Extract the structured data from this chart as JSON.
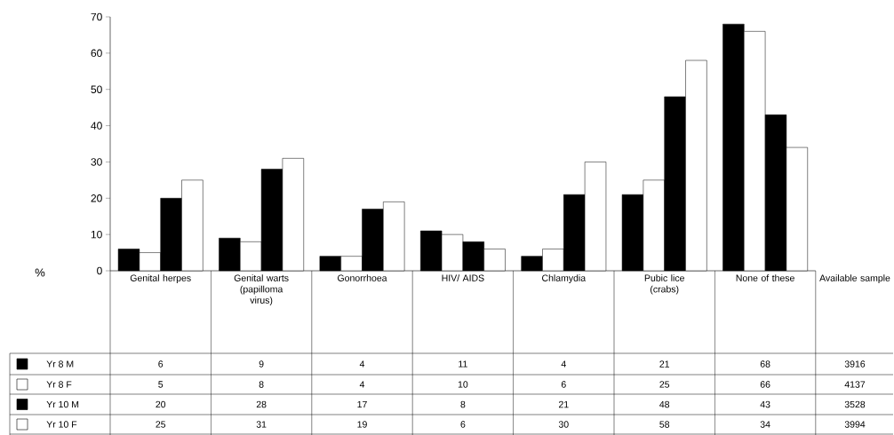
{
  "chart_data": {
    "type": "bar",
    "ylabel": "%",
    "categories": [
      "Genital herpes",
      "Genital warts (papilloma virus)",
      "Gonorrhoea",
      "HIV/ AIDS",
      "Chlamydia",
      "Pubic lice (crabs)",
      "None of these"
    ],
    "series": [
      {
        "name": "Yr 8 M",
        "color": "#000000",
        "values": [
          6,
          9,
          4,
          11,
          4,
          21,
          68
        ]
      },
      {
        "name": "Yr 8 F",
        "color": "#ffffff",
        "values": [
          5,
          8,
          4,
          10,
          6,
          25,
          66
        ]
      },
      {
        "name": "Yr 10 M",
        "color": "#000000",
        "values": [
          20,
          28,
          17,
          8,
          21,
          48,
          43
        ]
      },
      {
        "name": "Yr 10 F",
        "color": "#ffffff",
        "values": [
          25,
          31,
          19,
          6,
          30,
          58,
          34
        ]
      }
    ],
    "ylim": [
      0,
      70
    ],
    "yticks": [
      0,
      10,
      20,
      30,
      40,
      50,
      60,
      70
    ],
    "grid": false,
    "legend": "bottom",
    "data_labels": true,
    "annotations": [
      "Available sample",
      "3916",
      "4137",
      "3528",
      "3994"
    ]
  }
}
